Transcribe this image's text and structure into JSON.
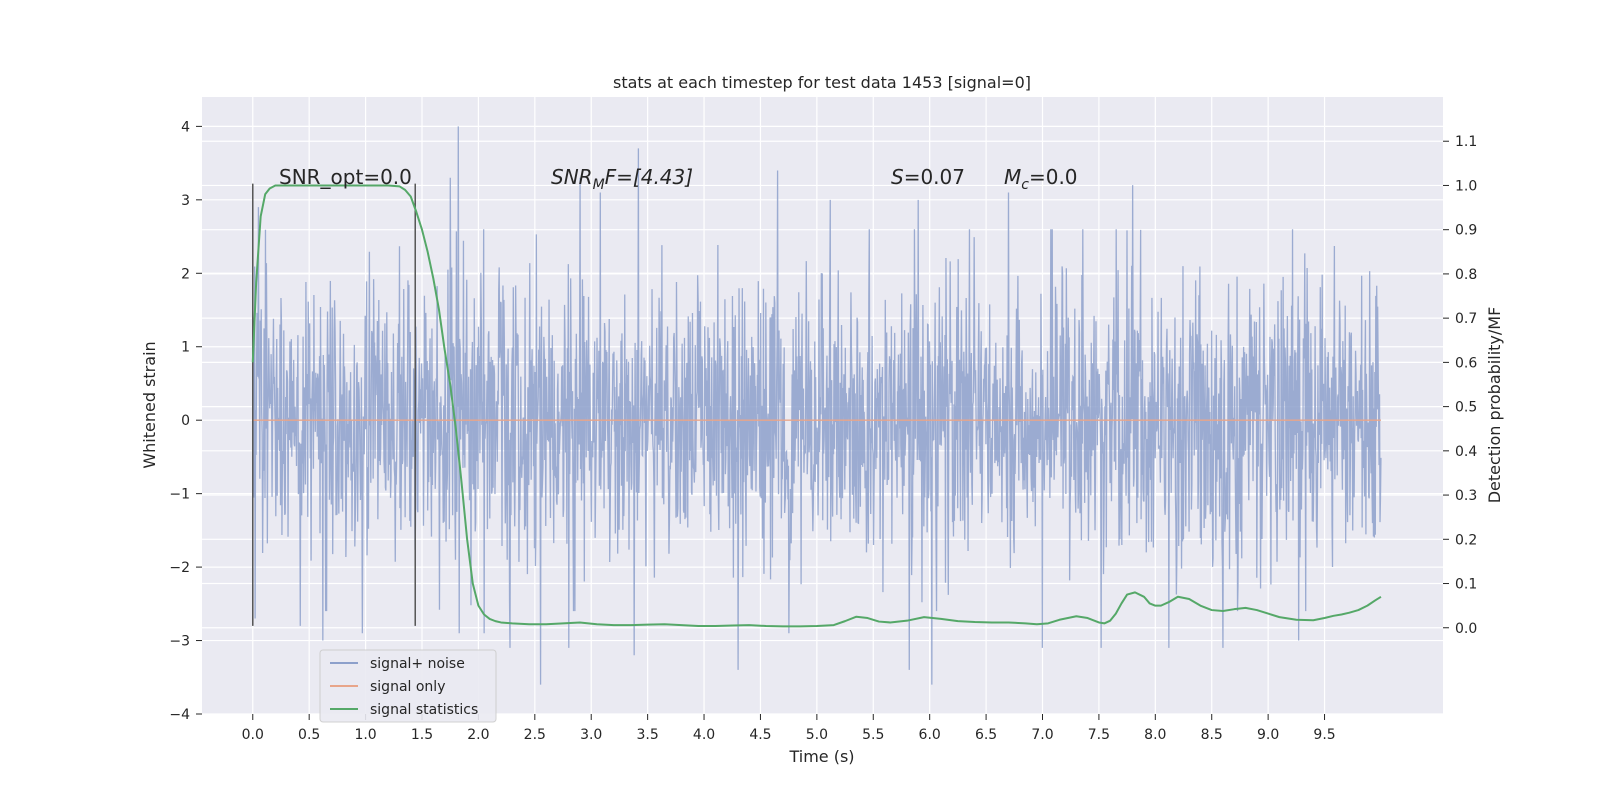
{
  "chart_data": {
    "type": "line",
    "title": "stats at each timestep for test data 1453 [signal=0]",
    "xlabel": "Time (s)",
    "ylabel": "Whitened strain",
    "y2label": "Detection probability/MF",
    "xlim": [
      -0.45,
      10.55
    ],
    "ylim": [
      -4.0,
      4.4
    ],
    "y2lim": [
      -0.195,
      1.2
    ],
    "xticks": [
      "0.0",
      "0.5",
      "1.0",
      "1.5",
      "2.0",
      "2.5",
      "3.0",
      "3.5",
      "4.0",
      "4.5",
      "5.0",
      "5.5",
      "6.0",
      "6.5",
      "7.0",
      "7.5",
      "8.0",
      "8.5",
      "9.0",
      "9.5"
    ],
    "xtick_values": [
      0.0,
      0.5,
      1.0,
      1.5,
      2.0,
      2.5,
      3.0,
      3.5,
      4.0,
      4.5,
      5.0,
      5.5,
      6.0,
      6.5,
      7.0,
      7.5,
      8.0,
      8.5,
      9.0,
      9.5
    ],
    "yticks": [
      "4",
      "3",
      "2",
      "1",
      "0",
      "−1",
      "−2",
      "−3",
      "−4"
    ],
    "ytick_values": [
      4,
      3,
      2,
      1,
      0,
      -1,
      -2,
      -3,
      -4
    ],
    "y2ticks": [
      "1.1",
      "1.0",
      "0.9",
      "0.8",
      "0.7",
      "0.6",
      "0.5",
      "0.4",
      "0.3",
      "0.2",
      "0.1",
      "0.0"
    ],
    "y2tick_values": [
      1.1,
      1.0,
      0.9,
      0.8,
      0.7,
      0.6,
      0.5,
      0.4,
      0.3,
      0.2,
      0.1,
      0.0
    ],
    "grid": true,
    "legend_position": "lower-left",
    "series": [
      {
        "name": "signal+ noise",
        "axis": "left",
        "color": "#8da0cb",
        "x_range": [
          0.0,
          10.0
        ],
        "peaks": [
          [
            0.02,
            -2.7
          ],
          [
            0.05,
            2.9
          ],
          [
            0.42,
            -2.8
          ],
          [
            0.62,
            -3.0
          ],
          [
            0.97,
            -2.9
          ],
          [
            1.75,
            3.3
          ],
          [
            1.82,
            4.0
          ],
          [
            1.83,
            -2.9
          ],
          [
            2.05,
            -2.9
          ],
          [
            2.28,
            -3.1
          ],
          [
            2.55,
            -3.6
          ],
          [
            2.8,
            -3.1
          ],
          [
            2.9,
            3.3
          ],
          [
            3.08,
            3.1
          ],
          [
            3.38,
            -3.2
          ],
          [
            3.42,
            3.7
          ],
          [
            4.3,
            -3.4
          ],
          [
            4.65,
            3.4
          ],
          [
            4.75,
            -2.9
          ],
          [
            5.12,
            3.0
          ],
          [
            5.82,
            -3.4
          ],
          [
            5.9,
            3.0
          ],
          [
            6.02,
            -3.6
          ],
          [
            6.7,
            3.1
          ],
          [
            7.0,
            -3.1
          ],
          [
            7.52,
            -3.1
          ],
          [
            7.8,
            3.2
          ],
          [
            8.12,
            -3.1
          ],
          [
            8.6,
            -3.1
          ],
          [
            9.27,
            -3.0
          ]
        ]
      },
      {
        "name": "signal only",
        "axis": "left",
        "color": "#e8a58a",
        "x": [
          0.0,
          10.0
        ],
        "y": [
          0.0,
          0.0
        ]
      },
      {
        "name": "signal statistics",
        "axis": "right",
        "color": "#55a868",
        "x": [
          0.0,
          0.03,
          0.07,
          0.11,
          0.15,
          0.2,
          0.3,
          0.5,
          0.7,
          0.9,
          1.1,
          1.2,
          1.3,
          1.35,
          1.4,
          1.45,
          1.5,
          1.55,
          1.6,
          1.65,
          1.7,
          1.75,
          1.8,
          1.85,
          1.9,
          1.95,
          2.0,
          2.05,
          2.1,
          2.15,
          2.2,
          2.3,
          2.45,
          2.6,
          2.75,
          2.9,
          3.05,
          3.2,
          3.35,
          3.5,
          3.65,
          3.8,
          3.95,
          4.1,
          4.25,
          4.4,
          4.55,
          4.7,
          4.85,
          5.0,
          5.15,
          5.25,
          5.35,
          5.45,
          5.55,
          5.65,
          5.8,
          5.95,
          6.1,
          6.25,
          6.4,
          6.55,
          6.7,
          6.85,
          6.95,
          7.05,
          7.15,
          7.3,
          7.4,
          7.5,
          7.55,
          7.6,
          7.65,
          7.7,
          7.75,
          7.82,
          7.9,
          7.95,
          8.0,
          8.05,
          8.12,
          8.2,
          8.3,
          8.4,
          8.5,
          8.6,
          8.7,
          8.8,
          8.9,
          9.0,
          9.1,
          9.25,
          9.4,
          9.5,
          9.58,
          9.65,
          9.72,
          9.8,
          9.88,
          9.95,
          10.0
        ],
        "y": [
          0.6,
          0.78,
          0.93,
          0.98,
          0.993,
          1.0,
          1.0,
          1.0,
          1.0,
          1.0,
          1.0,
          1.0,
          0.998,
          0.99,
          0.975,
          0.94,
          0.9,
          0.85,
          0.79,
          0.72,
          0.63,
          0.55,
          0.45,
          0.33,
          0.2,
          0.1,
          0.05,
          0.03,
          0.02,
          0.015,
          0.012,
          0.01,
          0.008,
          0.008,
          0.01,
          0.012,
          0.008,
          0.006,
          0.006,
          0.007,
          0.008,
          0.006,
          0.004,
          0.004,
          0.005,
          0.006,
          0.004,
          0.003,
          0.003,
          0.004,
          0.006,
          0.015,
          0.025,
          0.022,
          0.014,
          0.012,
          0.016,
          0.024,
          0.02,
          0.015,
          0.013,
          0.012,
          0.012,
          0.01,
          0.008,
          0.01,
          0.018,
          0.026,
          0.022,
          0.012,
          0.01,
          0.016,
          0.032,
          0.055,
          0.075,
          0.08,
          0.07,
          0.055,
          0.05,
          0.05,
          0.058,
          0.07,
          0.065,
          0.05,
          0.04,
          0.038,
          0.042,
          0.045,
          0.04,
          0.032,
          0.024,
          0.018,
          0.017,
          0.022,
          0.027,
          0.03,
          0.034,
          0.04,
          0.05,
          0.062,
          0.07
        ]
      }
    ],
    "vlines": [
      {
        "x": 0.0,
        "y_from": -2.8,
        "y_to": 3.22,
        "color": "#555555"
      },
      {
        "x": 1.44,
        "y_from": -2.8,
        "y_to": 3.22,
        "color": "#555555"
      }
    ],
    "annotations": {
      "snr_opt": "SNR_opt=0.0",
      "snr_mf_italic": "SNR",
      "snr_mf_sub": "M",
      "snr_mf_rest": "F=[4.43]",
      "s_italic": "S",
      "s_rest": "=0.07",
      "mc_italic": "M",
      "mc_sub": "c",
      "mc_rest": "=0.0"
    }
  }
}
